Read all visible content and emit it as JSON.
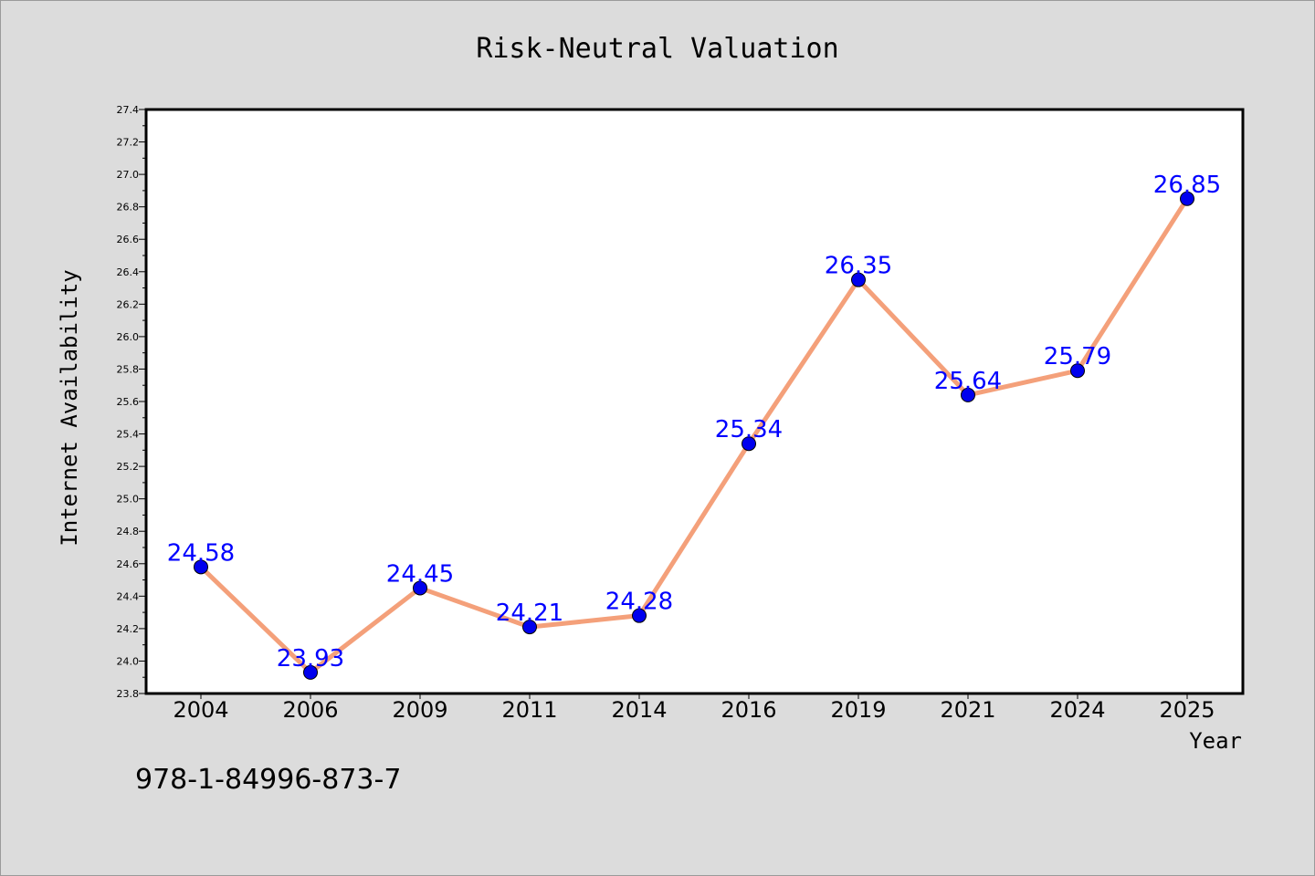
{
  "chart_data": {
    "type": "line",
    "title": "Risk-Neutral Valuation",
    "xlabel": "Year",
    "ylabel": "Internet Availability",
    "categories": [
      "2004",
      "2006",
      "2009",
      "2011",
      "2014",
      "2016",
      "2019",
      "2021",
      "2024",
      "2025"
    ],
    "series": [
      {
        "values": [
          24.58,
          23.93,
          24.45,
          24.21,
          24.28,
          25.34,
          26.35,
          25.64,
          25.79,
          26.85
        ],
        "data_labels": [
          "24.58",
          "23.93",
          "24.45",
          "24.21",
          "24.28",
          "25.34",
          "26.35",
          "25.64",
          "25.79",
          "26.85"
        ]
      }
    ],
    "ylim": [
      23.8,
      27.4
    ],
    "yticks": [
      "23.8",
      "24.0",
      "24.2",
      "24.4",
      "24.6",
      "24.8",
      "25.0",
      "25.2",
      "25.4",
      "25.6",
      "25.8",
      "26.0",
      "26.2",
      "26.4",
      "26.6",
      "26.8",
      "27.0",
      "27.2",
      "27.4"
    ],
    "grid": false,
    "colors": {
      "line": "#f4a07a",
      "marker": "#0000ee",
      "label": "#0000ff",
      "background": "#dcdcdc",
      "plot_background": "#ffffff"
    }
  },
  "footer": {
    "isbn": "978-1-84996-873-7"
  }
}
